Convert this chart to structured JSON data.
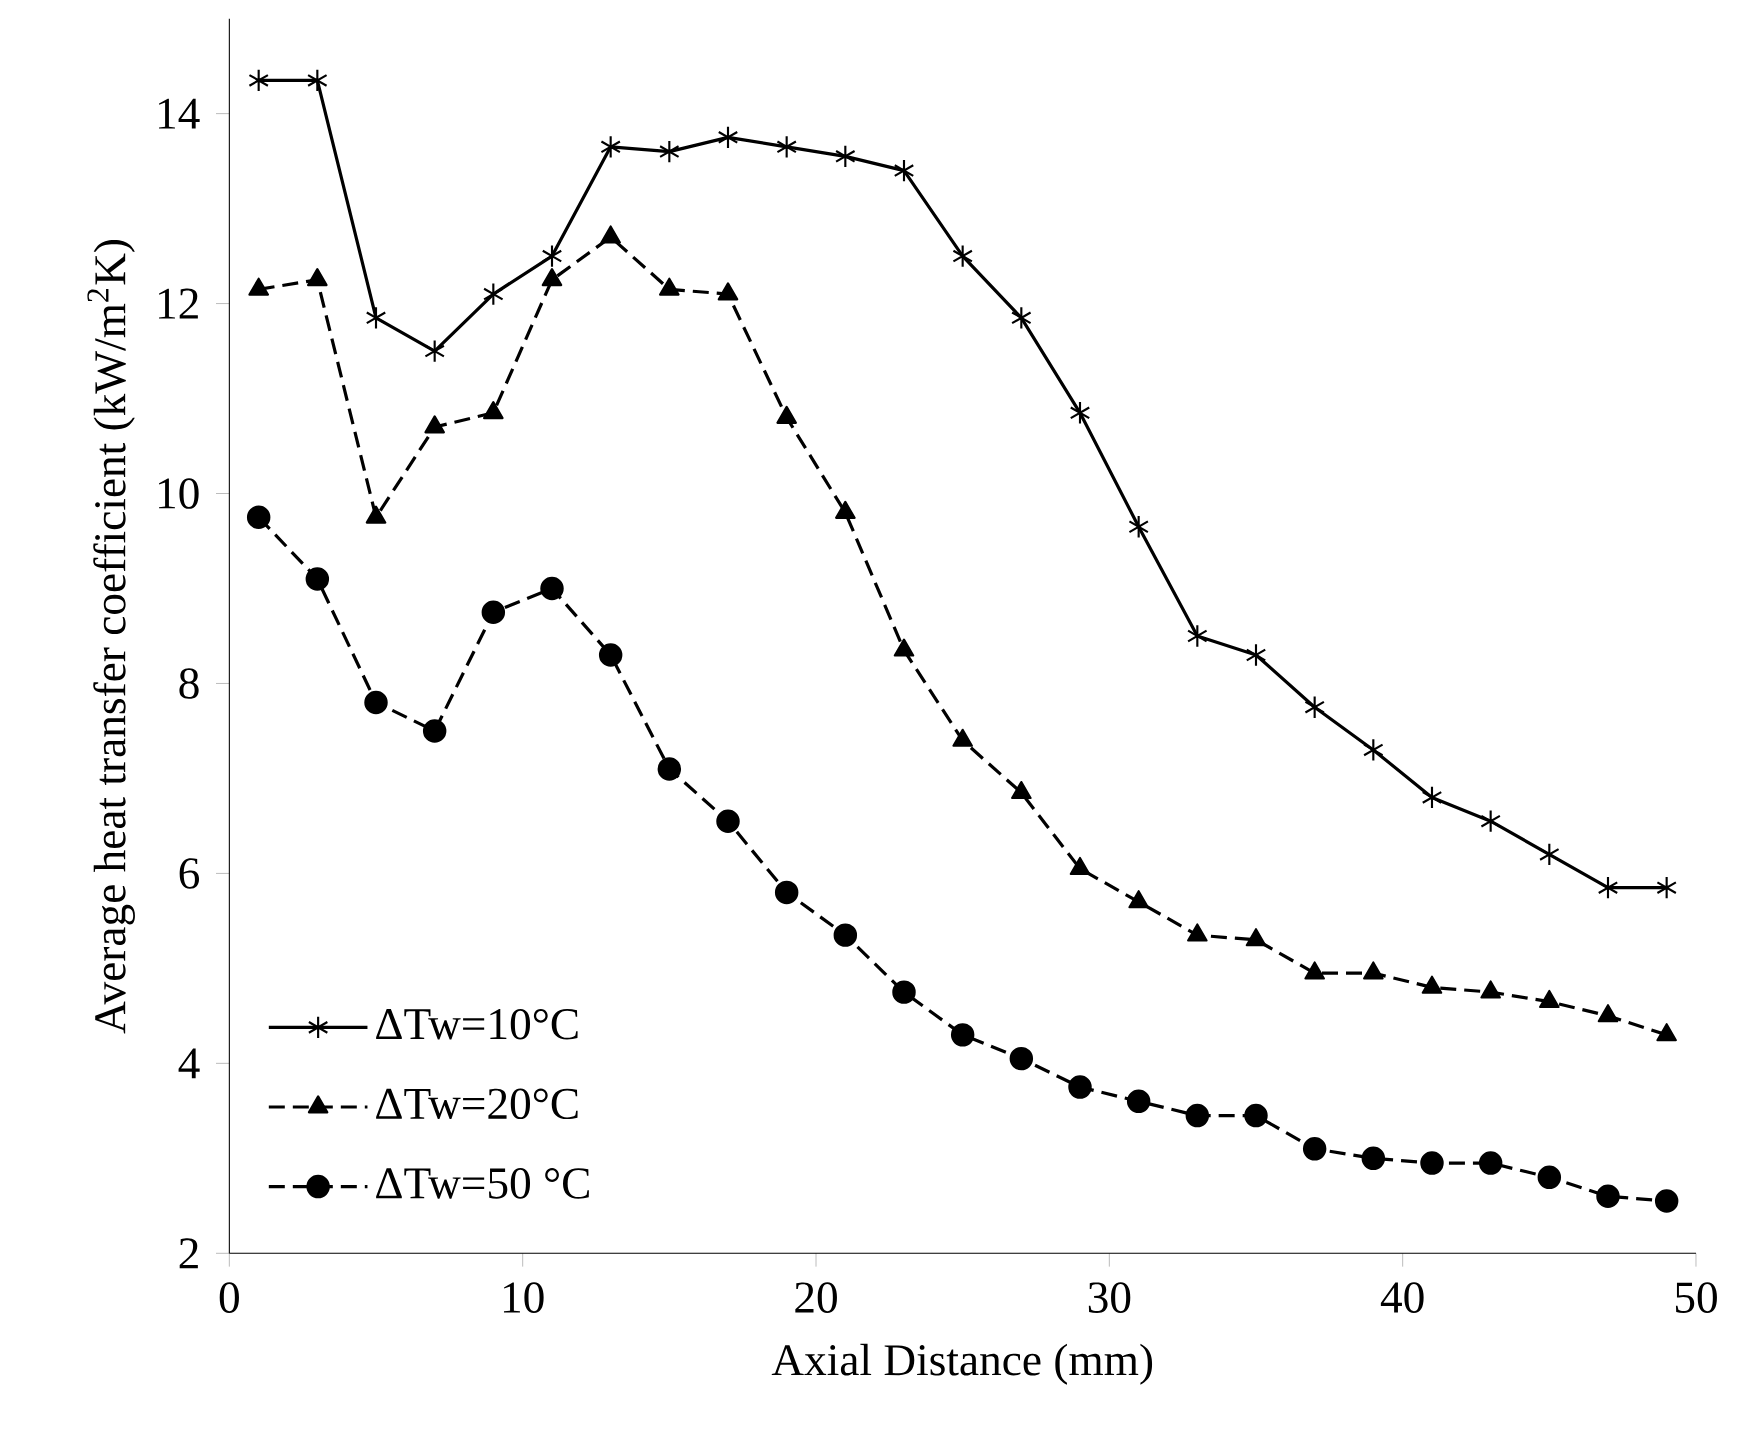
{
  "chart_data": {
    "type": "line",
    "xlabel": "Axial Distance (mm)",
    "ylabel": "Average heat transfer coefficient (kW/m$^{2}$K)",
    "x": [
      1,
      3,
      5,
      7,
      9,
      11,
      13,
      15,
      17,
      19,
      21,
      23,
      25,
      27,
      29,
      31,
      33,
      35,
      37,
      39,
      41,
      43,
      45,
      47,
      49
    ],
    "series": [
      {
        "name": "ΔTw=10°C",
        "color": "#000000",
        "marker": "cross",
        "line_style": "solid",
        "values": [
          14.35,
          14.35,
          11.85,
          11.5,
          12.1,
          12.5,
          13.65,
          13.6,
          13.75,
          13.65,
          13.55,
          13.4,
          12.5,
          11.85,
          10.85,
          9.65,
          8.5,
          8.3,
          7.75,
          7.3,
          6.8,
          6.55,
          6.2,
          5.85,
          5.85
        ]
      },
      {
        "name": "ΔTw=20°C",
        "color": "#000000",
        "marker": "triangle",
        "line_style": "dashed",
        "values": [
          12.15,
          12.25,
          9.75,
          10.7,
          10.85,
          12.25,
          12.7,
          12.15,
          12.1,
          10.8,
          9.8,
          8.35,
          7.4,
          6.85,
          6.05,
          5.7,
          5.35,
          5.3,
          4.95,
          4.95,
          4.8,
          4.75,
          4.65,
          4.5,
          4.3
        ]
      },
      {
        "name": "ΔTw=50 °C",
        "color": "#000000",
        "marker": "circle",
        "line_style": "dashed",
        "values": [
          9.75,
          9.1,
          7.8,
          7.5,
          8.75,
          9.0,
          8.3,
          7.1,
          6.55,
          5.8,
          5.35,
          4.75,
          4.3,
          4.05,
          3.75,
          3.6,
          3.45,
          3.45,
          3.1,
          3.0,
          2.95,
          2.95,
          2.8,
          2.6,
          2.55
        ]
      }
    ],
    "xlim": [
      0,
      50
    ],
    "ylim": [
      2,
      15
    ],
    "xticks": [
      0,
      10,
      20,
      30,
      40,
      50
    ],
    "yticks": [
      2,
      4,
      6,
      8,
      10,
      12,
      14
    ],
    "grid": false,
    "legend": "bottom left"
  }
}
